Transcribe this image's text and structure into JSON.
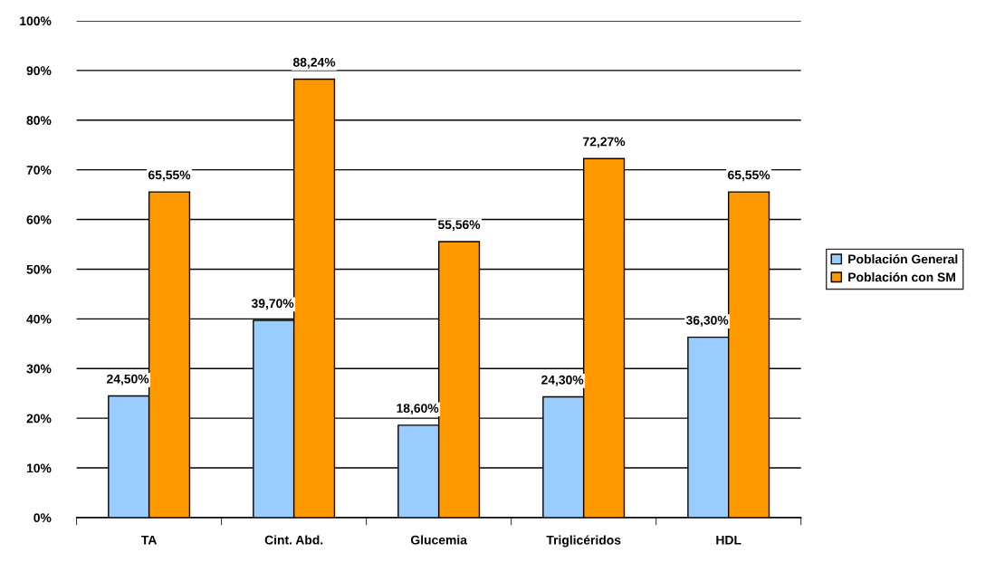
{
  "chart_data": {
    "type": "bar",
    "categories": [
      "TA",
      "Cint. Abd.",
      "Glucemia",
      "Triglicéridos",
      "HDL"
    ],
    "series": [
      {
        "name": "Población General",
        "color": "#99ccff",
        "values": [
          24.5,
          39.7,
          18.6,
          24.3,
          36.3
        ],
        "value_labels": [
          "24,50%",
          "39,70%",
          "18,60%",
          "24,30%",
          "36,30%"
        ]
      },
      {
        "name": "Población con SM",
        "color": "#ff9900",
        "values": [
          65.55,
          88.24,
          55.56,
          72.27,
          65.55
        ],
        "value_labels": [
          "65,55%",
          "88,24%",
          "55,56%",
          "72,27%",
          "65,55%"
        ]
      }
    ],
    "ylim": [
      0,
      100
    ],
    "yticks": [
      {
        "value": 0,
        "label": "0%"
      },
      {
        "value": 10,
        "label": "10%"
      },
      {
        "value": 20,
        "label": "20%"
      },
      {
        "value": 30,
        "label": "30%"
      },
      {
        "value": 40,
        "label": "40%"
      },
      {
        "value": 50,
        "label": "50%"
      },
      {
        "value": 60,
        "label": "60%"
      },
      {
        "value": 70,
        "label": "70%"
      },
      {
        "value": 80,
        "label": "80%"
      },
      {
        "value": 90,
        "label": "90%"
      },
      {
        "value": 100,
        "label": "100%"
      }
    ],
    "grid": "y",
    "legend": "right"
  }
}
